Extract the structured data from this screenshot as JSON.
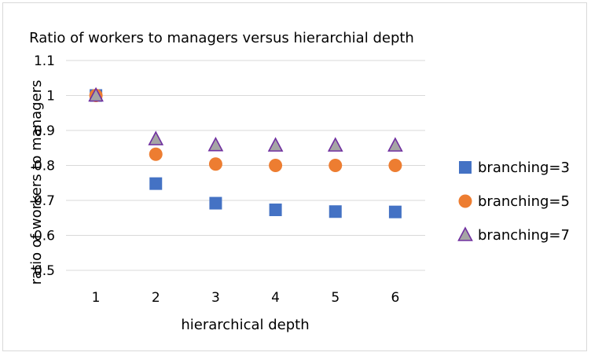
{
  "chart_data": {
    "type": "scatter",
    "title": "Ratio of workers to managers versus hierarchial depth",
    "xlabel": "hierarchical depth",
    "ylabel": "ratio of workers to managers",
    "xlim": [
      1,
      6
    ],
    "ylim": [
      0.5,
      1.1
    ],
    "x_ticks": [
      "1",
      "2",
      "3",
      "4",
      "5",
      "6"
    ],
    "y_ticks": [
      "0.5",
      "0.6",
      "0.7",
      "0.8",
      "0.9",
      "1",
      "1.1"
    ],
    "grid": "horizontal",
    "legend_position": "right",
    "series": [
      {
        "name": "branching=3",
        "marker": "square",
        "color": "#4472c4",
        "x": [
          1,
          2,
          3,
          4,
          5,
          6
        ],
        "y": [
          1.0,
          0.748,
          0.692,
          0.673,
          0.668,
          0.667
        ]
      },
      {
        "name": "branching=5",
        "marker": "circle",
        "color": "#ed7d31",
        "x": [
          1,
          2,
          3,
          4,
          5,
          6
        ],
        "y": [
          1.0,
          0.832,
          0.804,
          0.8,
          0.8,
          0.8
        ]
      },
      {
        "name": "branching=7",
        "marker": "triangle",
        "color": "#a5a5a5",
        "edge_color": "#7030a0",
        "x": [
          1,
          2,
          3,
          4,
          5,
          6
        ],
        "y": [
          1.0,
          0.875,
          0.858,
          0.857,
          0.857,
          0.857
        ]
      }
    ]
  }
}
